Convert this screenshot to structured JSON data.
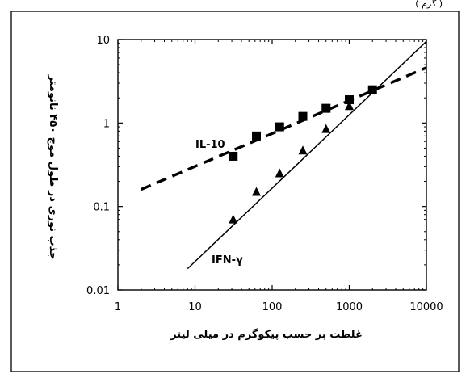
{
  "header_fragment": "(   گرم )",
  "chart_data": {
    "type": "scatter",
    "xscale": "log",
    "yscale": "log",
    "xlim": [
      1,
      10000
    ],
    "ylim": [
      0.01,
      10
    ],
    "xticks": [
      1,
      10,
      100,
      1000,
      10000
    ],
    "yticks": [
      0.01,
      0.1,
      1,
      10
    ],
    "xtick_labels": [
      "1",
      "10",
      "100",
      "1000",
      "10000"
    ],
    "ytick_labels": [
      "0.01",
      "0.1",
      "1",
      "10"
    ],
    "xlabel": "غلظت بر حسب پیکوگرم در میلی لیتر",
    "ylabel": "جذب نوری در طول موج ۴۵۰ نانومتر",
    "grid": false,
    "series": [
      {
        "name": "IL-10",
        "marker": "square",
        "line": "dashed",
        "x": [
          31.25,
          62.5,
          125,
          250,
          500,
          1000,
          2000
        ],
        "y": [
          0.4,
          0.7,
          0.9,
          1.2,
          1.5,
          1.9,
          2.5
        ],
        "fit": {
          "x": [
            2,
            10000
          ],
          "y": [
            0.16,
            4.6
          ]
        }
      },
      {
        "name": "IFN-γ",
        "marker": "triangle",
        "line": "solid",
        "x": [
          31.25,
          62.5,
          125,
          250,
          500,
          1000,
          2000
        ],
        "y": [
          0.07,
          0.15,
          0.25,
          0.47,
          0.85,
          1.6,
          2.5
        ],
        "fit": {
          "x": [
            8,
            10000
          ],
          "y": [
            0.018,
            9.5
          ]
        }
      }
    ]
  }
}
